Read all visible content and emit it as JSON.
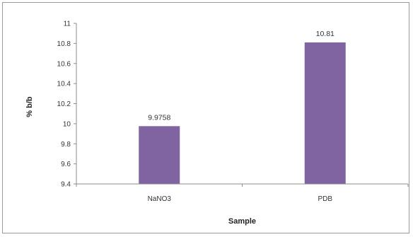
{
  "chart_data": {
    "type": "bar",
    "title": "",
    "xlabel": "Sample",
    "ylabel": "% b/b",
    "categories": [
      "NaNO3",
      "PDB"
    ],
    "values": [
      9.9758,
      10.81
    ],
    "data_labels": [
      "9.9758",
      "10.81"
    ],
    "ylim": [
      9.4,
      11
    ],
    "yticks": [
      9.4,
      9.6,
      9.8,
      10,
      10.2,
      10.4,
      10.6,
      10.8,
      11
    ],
    "ytick_labels": [
      "9.4",
      "9.6",
      "9.8",
      "10",
      "10.2",
      "10.4",
      "10.6",
      "10.8",
      "11"
    ],
    "grid": false,
    "legend": "none",
    "bar_color": "#8064a2"
  }
}
